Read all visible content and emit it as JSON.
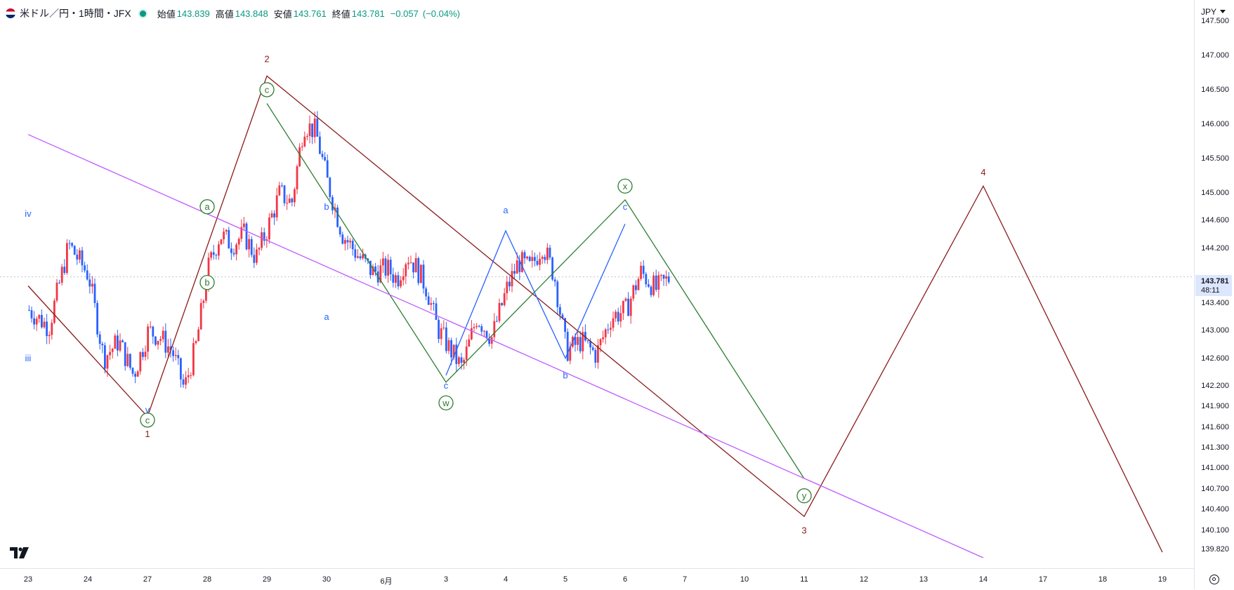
{
  "header": {
    "symbol": "米ドル／円・1時間・JFX",
    "open_label": "始値",
    "open_value": "143.839",
    "high_label": "高値",
    "high_value": "143.848",
    "low_label": "安値",
    "low_value": "143.761",
    "close_label": "終値",
    "close_value": "143.781",
    "change": "−0.057",
    "change_pct": "(−0.04%)",
    "status_color": "#089981"
  },
  "price_axis": {
    "currency": "JPY",
    "current_price": "143.781",
    "countdown": "48:11",
    "ticks": [
      "147.500",
      "147.000",
      "146.500",
      "146.000",
      "145.500",
      "145.000",
      "144.600",
      "144.200",
      "143.400",
      "143.000",
      "142.600",
      "142.200",
      "141.900",
      "141.600",
      "141.300",
      "141.000",
      "140.700",
      "140.400",
      "140.100",
      "139.820"
    ]
  },
  "time_axis": {
    "ticks": [
      "23",
      "24",
      "27",
      "28",
      "29",
      "30",
      "6月",
      "3",
      "4",
      "5",
      "6",
      "7",
      "10",
      "11",
      "12",
      "13",
      "14",
      "17",
      "18",
      "19"
    ]
  },
  "chart_data": {
    "type": "candlestick",
    "symbol": "米ドル／円・1時間・JFX",
    "timeframe": "1時間",
    "up_color": "#f23645",
    "down_color": "#2962ff",
    "ylim": [
      139.7,
      147.6
    ],
    "last_close": 143.781,
    "path": [
      [
        "23",
        143.3
      ],
      [
        "23",
        143.05
      ],
      [
        "23",
        144.25
      ],
      [
        "24",
        143.8
      ],
      [
        "24",
        142.6
      ],
      [
        "24",
        142.85
      ],
      [
        "24",
        142.35
      ],
      [
        "27",
        143.0
      ],
      [
        "27",
        142.9
      ],
      [
        "27",
        142.7
      ],
      [
        "27",
        142.15
      ],
      [
        "27",
        142.8
      ],
      [
        "28",
        143.9
      ],
      [
        "28",
        144.4
      ],
      [
        "28",
        144.25
      ],
      [
        "28",
        144.4
      ],
      [
        "28",
        144.05
      ],
      [
        "29",
        144.5
      ],
      [
        "29",
        145.0
      ],
      [
        "29",
        144.85
      ],
      [
        "29",
        146.0
      ],
      [
        "29",
        145.9
      ],
      [
        "30",
        145.15
      ],
      [
        "30",
        144.4
      ],
      [
        "30",
        144.1
      ],
      [
        "30",
        143.85
      ],
      [
        "6月",
        143.9
      ],
      [
        "6月",
        143.75
      ],
      [
        "6月",
        144.1
      ],
      [
        "6月",
        143.9
      ],
      [
        "6月",
        143.6
      ],
      [
        "6月",
        143.05
      ],
      [
        "3",
        142.8
      ],
      [
        "3",
        142.45
      ],
      [
        "3",
        143.2
      ],
      [
        "3",
        142.9
      ],
      [
        "4",
        143.6
      ],
      [
        "4",
        144.0
      ],
      [
        "4",
        143.9
      ],
      [
        "4",
        144.25
      ],
      [
        "4",
        143.8
      ],
      [
        "5",
        142.7
      ],
      [
        "5",
        142.85
      ],
      [
        "5",
        142.65
      ],
      [
        "5",
        143.2
      ],
      [
        "6",
        143.3
      ],
      [
        "6",
        143.85
      ],
      [
        "6",
        143.6
      ],
      [
        "6",
        143.781
      ]
    ],
    "wave_lines": [
      {
        "color": "#8b1a1a",
        "points": [
          [
            "23",
            143.65
          ],
          [
            "27",
            141.75
          ],
          [
            "29",
            146.7
          ],
          [
            "11",
            140.3
          ],
          [
            "14",
            145.1
          ],
          [
            "19",
            139.78
          ]
        ]
      },
      {
        "color": "#2e7d32",
        "points": [
          [
            "29",
            146.3
          ],
          [
            "3",
            142.25
          ],
          [
            "6",
            144.9
          ],
          [
            "11",
            140.85
          ]
        ]
      },
      {
        "color": "#2962ff",
        "points": [
          [
            "3",
            142.35
          ],
          [
            "4",
            144.45
          ],
          [
            "5",
            142.6
          ],
          [
            "6",
            144.55
          ]
        ]
      },
      {
        "color": "#c05bff",
        "points": [
          [
            "23",
            145.85
          ],
          [
            "14",
            139.7
          ]
        ]
      }
    ],
    "wave_labels": [
      {
        "text": "iv",
        "x": "23",
        "y": 144.7,
        "color": "#2962ff"
      },
      {
        "text": "iii",
        "x": "23",
        "y": 142.6,
        "color": "#2962ff"
      },
      {
        "text": "v",
        "x": "27",
        "y": 141.85,
        "color": "#2962ff"
      },
      {
        "text": "c",
        "x": "27",
        "y": 141.7,
        "color": "#2e7d32",
        "circled": true
      },
      {
        "text": "1",
        "x": "27",
        "y": 141.5,
        "color": "#8b1a1a"
      },
      {
        "text": "a",
        "x": "28",
        "y": 144.8,
        "color": "#2e7d32",
        "circled": true
      },
      {
        "text": "b",
        "x": "28",
        "y": 143.7,
        "color": "#2e7d32",
        "circled": true
      },
      {
        "text": "2",
        "x": "29",
        "y": 146.95,
        "color": "#8b1a1a"
      },
      {
        "text": "c",
        "x": "29",
        "y": 146.5,
        "color": "#2e7d32",
        "circled": true
      },
      {
        "text": "b",
        "x": "30",
        "y": 144.8,
        "color": "#2962ff"
      },
      {
        "text": "a",
        "x": "30",
        "y": 143.2,
        "color": "#2962ff"
      },
      {
        "text": "c",
        "x": "3",
        "y": 142.2,
        "color": "#2962ff"
      },
      {
        "text": "w",
        "x": "3",
        "y": 141.95,
        "color": "#2e7d32",
        "circled": true
      },
      {
        "text": "a",
        "x": "4",
        "y": 144.75,
        "color": "#2962ff"
      },
      {
        "text": "b",
        "x": "5",
        "y": 142.35,
        "color": "#2962ff"
      },
      {
        "text": "x",
        "x": "6",
        "y": 145.1,
        "color": "#2e7d32",
        "circled": true
      },
      {
        "text": "c",
        "x": "6",
        "y": 144.8,
        "color": "#2962ff"
      },
      {
        "text": "y",
        "x": "11",
        "y": 140.6,
        "color": "#2e7d32",
        "circled": true
      },
      {
        "text": "3",
        "x": "11",
        "y": 140.1,
        "color": "#8b1a1a"
      },
      {
        "text": "4",
        "x": "14",
        "y": 145.3,
        "color": "#8b1a1a"
      }
    ]
  }
}
